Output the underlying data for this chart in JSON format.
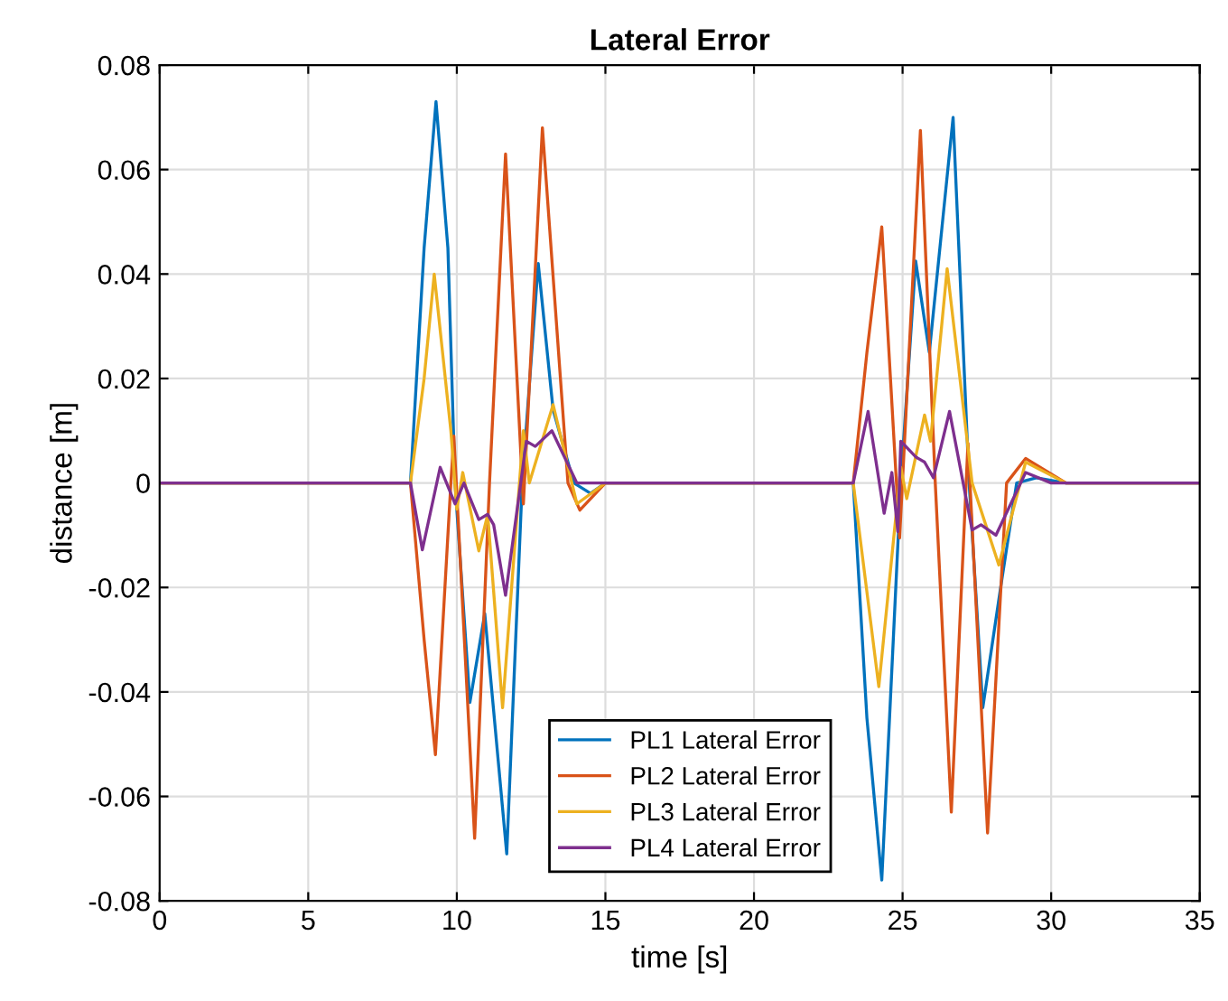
{
  "chart_data": {
    "type": "line",
    "title": "Lateral Error",
    "xlabel": "time [s]",
    "ylabel": "distance [m]",
    "xlim": [
      0,
      35
    ],
    "ylim": [
      -0.08,
      0.08
    ],
    "xticks": [
      0,
      5,
      10,
      15,
      20,
      25,
      30,
      35
    ],
    "yticks": [
      {
        "value": -0.08,
        "label": "-0.08"
      },
      {
        "value": -0.06,
        "label": "-0.06"
      },
      {
        "value": -0.04,
        "label": "-0.04"
      },
      {
        "value": -0.02,
        "label": "-0.02"
      },
      {
        "value": 0,
        "label": "0"
      },
      {
        "value": 0.02,
        "label": "0.02"
      },
      {
        "value": 0.04,
        "label": "0.04"
      },
      {
        "value": 0.06,
        "label": "0.06"
      },
      {
        "value": 0.08,
        "label": "0.08"
      }
    ],
    "grid": true,
    "legend": "bottom",
    "line_style": "solid",
    "marker": "none",
    "series": [
      {
        "name": "PL1 Lateral Error",
        "color": "#0072bd",
        "x": [
          0,
          8.44,
          8.9,
          9.3,
          9.7,
          9.94,
          10.44,
          10.94,
          11.68,
          12.2,
          12.74,
          13.24,
          13.94,
          14.5,
          15,
          23.34,
          23.8,
          24.3,
          24.94,
          25.44,
          25.9,
          26.7,
          27.24,
          27.7,
          28.3,
          28.84,
          29.5,
          30.5,
          35
        ],
        "values": [
          0,
          0,
          0.045,
          0.073,
          0.045,
          0,
          -0.042,
          -0.025,
          -0.071,
          0,
          0.042,
          0.014,
          0,
          -0.002,
          0,
          0,
          -0.045,
          -0.076,
          0,
          0.0425,
          0.025,
          0.07,
          0,
          -0.043,
          -0.02,
          0,
          0.001,
          0,
          0
        ]
      },
      {
        "name": "PL2 Lateral Error",
        "color": "#d95319",
        "x": [
          0,
          8.44,
          8.9,
          9.28,
          9.8,
          9.9,
          10.6,
          11.1,
          11.64,
          12.24,
          12.88,
          13.74,
          14.14,
          15,
          23.34,
          23.8,
          24.3,
          24.9,
          25.6,
          26.1,
          26.64,
          27.2,
          27.86,
          28.5,
          29.14,
          30.5,
          35
        ],
        "values": [
          0,
          0,
          -0.03,
          -0.052,
          0.0,
          0.009,
          -0.068,
          0,
          0.063,
          -0.004,
          0.068,
          0,
          -0.0052,
          0,
          0,
          0.025,
          0.049,
          -0.0105,
          0.0675,
          0,
          -0.063,
          0.0076,
          -0.067,
          0,
          0.0047,
          0,
          0
        ]
      },
      {
        "name": "PL3 Lateral Error",
        "color": "#edb120",
        "x": [
          0,
          8.44,
          8.9,
          9.24,
          9.8,
          10.0,
          10.2,
          10.74,
          11.04,
          11.54,
          12.24,
          12.44,
          13.24,
          14.04,
          15,
          23.34,
          24.2,
          24.94,
          25.14,
          25.74,
          25.94,
          26.5,
          27.34,
          28.24,
          29.14,
          30.5,
          35
        ],
        "values": [
          0,
          0,
          0.02,
          0.04,
          0.01,
          -0.005,
          0.002,
          -0.013,
          -0.006,
          -0.043,
          0.01,
          0,
          0.015,
          -0.004,
          0,
          0,
          -0.039,
          0.003,
          -0.003,
          0.013,
          0.008,
          0.041,
          0,
          -0.0157,
          0.004,
          0,
          0
        ]
      },
      {
        "name": "PL4 Lateral Error",
        "color": "#7e2f8e",
        "x": [
          0,
          8.44,
          8.84,
          9.44,
          9.94,
          10.24,
          10.74,
          11.04,
          11.24,
          11.64,
          12.34,
          12.64,
          13.2,
          14.04,
          23.34,
          23.84,
          24.38,
          24.64,
          24.84,
          24.94,
          25.44,
          25.74,
          26.04,
          26.58,
          27.34,
          27.64,
          28.14,
          29.14,
          30,
          35
        ],
        "values": [
          0,
          0,
          -0.0128,
          0.003,
          -0.004,
          0,
          -0.007,
          -0.006,
          -0.008,
          -0.0215,
          0.008,
          0.007,
          0.01,
          0,
          0,
          0.0137,
          -0.0058,
          0.002,
          -0.0093,
          0.008,
          0.005,
          0.004,
          0.001,
          0.0137,
          -0.009,
          -0.008,
          -0.01,
          0.002,
          0,
          0
        ]
      }
    ]
  }
}
